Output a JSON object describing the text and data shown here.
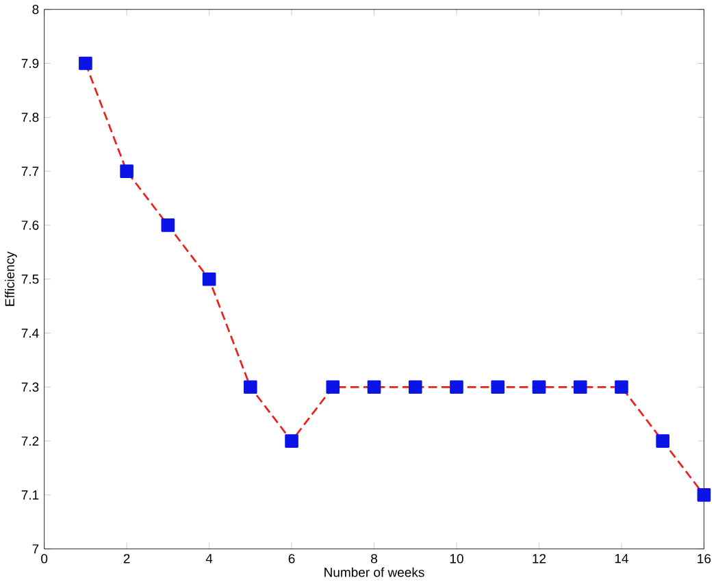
{
  "chart_data": {
    "type": "line",
    "xlabel": "Number of weeks",
    "ylabel": "Efficiency",
    "x": [
      1,
      2,
      3,
      4,
      5,
      6,
      7,
      8,
      9,
      10,
      11,
      12,
      13,
      14,
      15,
      16
    ],
    "series": [
      {
        "color": "#e8231f",
        "values": [
          7.9,
          7.7,
          7.6,
          7.5,
          7.3,
          7.2,
          7.3,
          7.3,
          7.3,
          7.3,
          7.3,
          7.3,
          7.3,
          7.3,
          7.2,
          7.1
        ]
      }
    ],
    "xlim": [
      0,
      16
    ],
    "xticks": [
      0,
      2,
      4,
      6,
      8,
      10,
      12,
      14,
      16
    ],
    "ylim": [
      7,
      8
    ],
    "yticks": [
      7,
      7.1,
      7.2,
      7.3,
      7.4,
      7.5,
      7.6,
      7.7,
      7.8,
      7.9,
      8
    ],
    "marker": "square",
    "line_style": "dashed"
  }
}
